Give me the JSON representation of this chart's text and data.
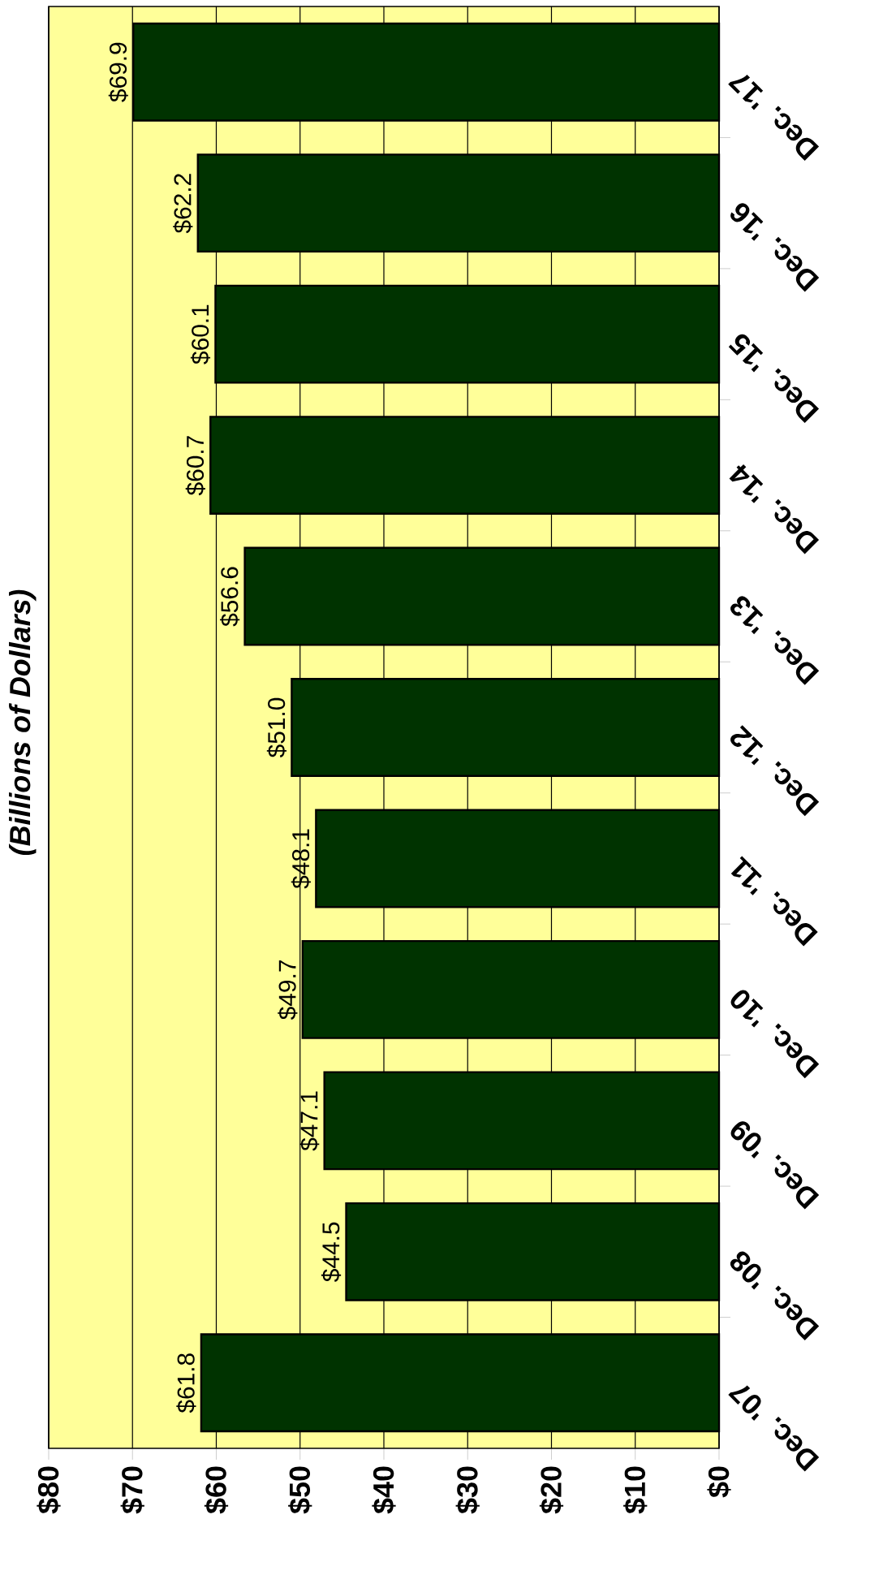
{
  "chart_data": {
    "type": "bar",
    "orientation": "horizontal",
    "title": "(Billions of Dollars)",
    "categories": [
      "Dec. '17",
      "Dec. '16",
      "Dec. '15",
      "Dec. '14",
      "Dec. '13",
      "Dec. '12",
      "Dec. '11",
      "Dec. '10",
      "Dec. '09",
      "Dec. '08",
      "Dec. '07"
    ],
    "values": [
      69.9,
      62.2,
      60.1,
      60.7,
      56.6,
      51.0,
      48.1,
      49.7,
      47.1,
      44.5,
      61.8
    ],
    "value_labels": [
      "$69.9",
      "$62.2",
      "$60.1",
      "$60.7",
      "$56.6",
      "$51.0",
      "$48.1",
      "$49.7",
      "$47.1",
      "$44.5",
      "$61.8"
    ],
    "color": "#003300",
    "xlim": [
      80,
      0
    ],
    "xticks": [
      {
        "value": 80,
        "label": "$80"
      },
      {
        "value": 70,
        "label": "$70"
      },
      {
        "value": 60,
        "label": "$60"
      },
      {
        "value": 50,
        "label": "$50"
      },
      {
        "value": 40,
        "label": "$40"
      },
      {
        "value": 30,
        "label": "$30"
      },
      {
        "value": 20,
        "label": "$20"
      },
      {
        "value": 10,
        "label": "$10"
      },
      {
        "value": 0,
        "label": "$0"
      }
    ],
    "grid": "x",
    "bands": [
      {
        "axis": "x",
        "from": 0,
        "to": 80,
        "color": "#ffff99"
      }
    ]
  }
}
